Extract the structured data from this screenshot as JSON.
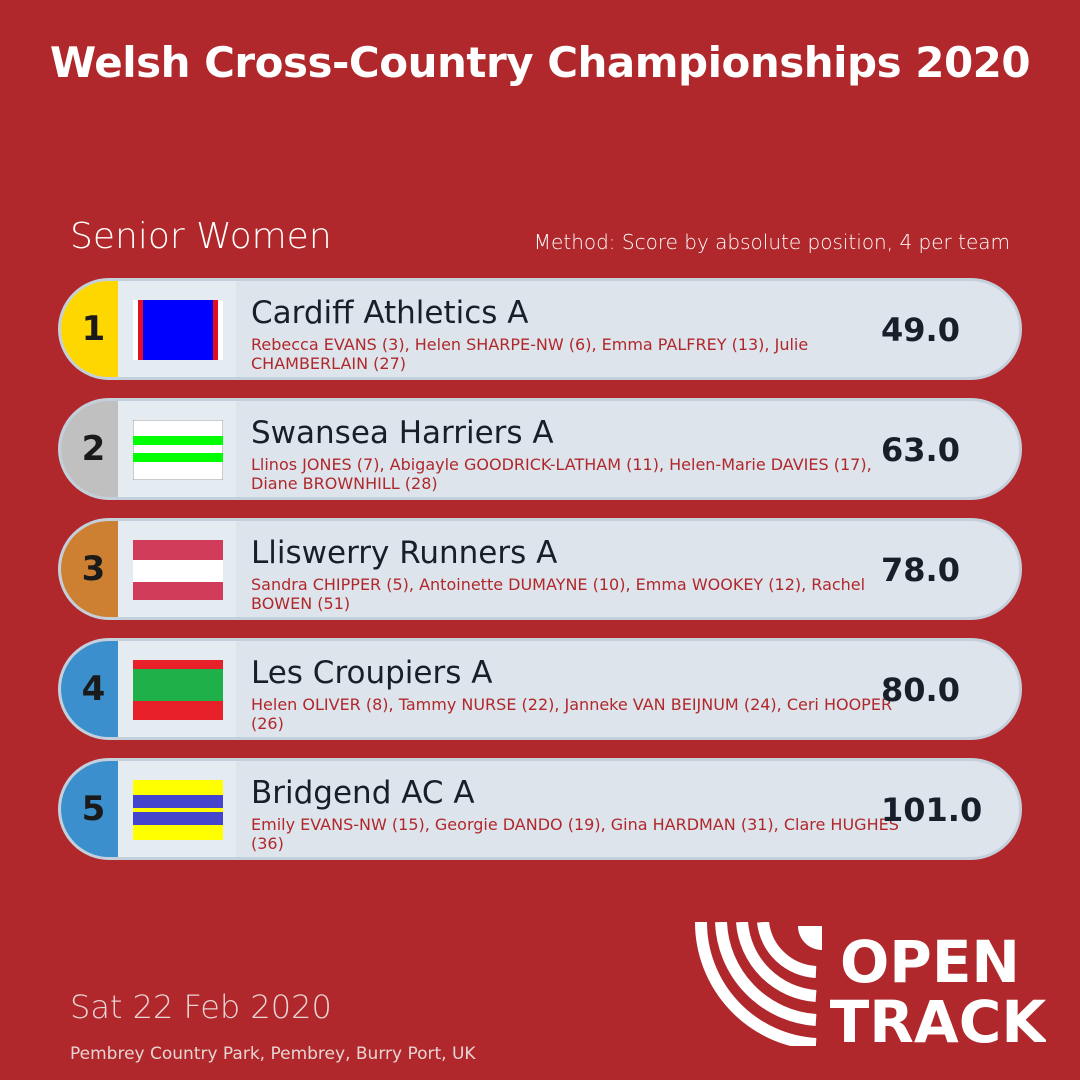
{
  "title": "Welsh Cross-Country Championships 2020",
  "category": "Senior Women",
  "method": "Method: Score by absolute position, 4 per team",
  "teams": [
    {
      "rank": "1",
      "name": "Cardiff Athletics A",
      "members": "Rebecca EVANS (3), Helen SHARPE-NW (6), Emma PALFREY (13), Julie CHAMBERLAIN (27)",
      "score": "49.0",
      "rank_color": "#ffd700"
    },
    {
      "rank": "2",
      "name": "Swansea Harriers A",
      "members": "Llinos JONES (7), Abigayle GOODRICK-LATHAM (11), Helen-Marie DAVIES (17), Diane BROWNHILL (28)",
      "score": "63.0",
      "rank_color": "#c0c0c0"
    },
    {
      "rank": "3",
      "name": "Lliswerry Runners A",
      "members": "Sandra CHIPPER (5), Antoinette DUMAYNE (10), Emma WOOKEY (12), Rachel BOWEN (51)",
      "score": "78.0",
      "rank_color": "#cd7f32"
    },
    {
      "rank": "4",
      "name": "Les Croupiers A",
      "members": "Helen OLIVER (8), Tammy NURSE (22), Janneke VAN BEIJNUM (24), Ceri HOOPER (26)",
      "score": "80.0",
      "rank_color": "#3a8fcc"
    },
    {
      "rank": "5",
      "name": "Bridgend AC A",
      "members": "Emily EVANS-NW (15), Georgie DANDO (19), Gina HARDMAN (31), Clare HUGHES (36)",
      "score": "101.0",
      "rank_color": "#3a8fcc"
    }
  ],
  "date": "Sat 22 Feb 2020",
  "venue": "Pembrey Country Park, Pembrey, Burry Port, UK",
  "logo": {
    "line1": "OPEN",
    "line2": "TRACK"
  },
  "colors": {
    "background": "#b0282b",
    "card": "#dde4eb"
  }
}
